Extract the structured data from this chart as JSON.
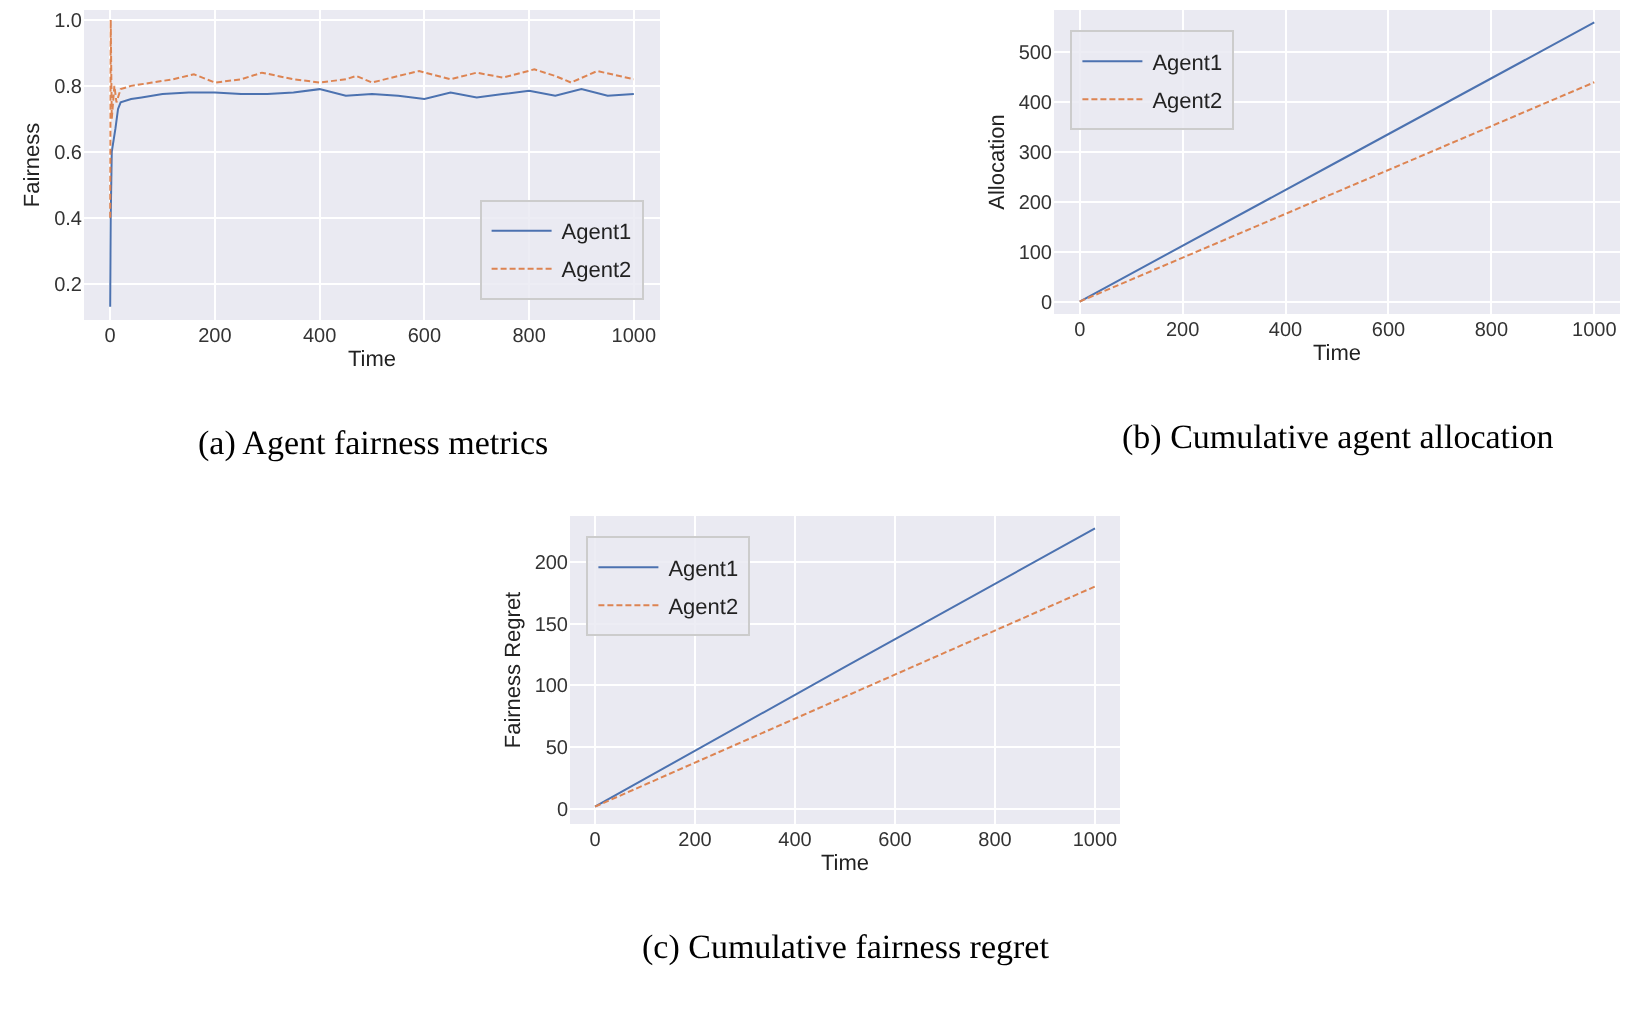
{
  "chart_data": [
    {
      "type": "line",
      "title": "(a) Agent fairness metrics",
      "xlabel": "Time",
      "ylabel": "Fairness",
      "xlim": [
        -50,
        1050
      ],
      "xticks": [
        0,
        200,
        400,
        600,
        800,
        1000
      ],
      "ylim": [
        0.09,
        1.03
      ],
      "yticks": [
        0.2,
        0.4,
        0.6,
        0.8,
        {
          "value": 1.0,
          "label": "1.0"
        }
      ],
      "grid": true,
      "legend": "bottom right",
      "series": [
        {
          "name": "Agent1",
          "color": "#4c72b0",
          "line_style": "solid",
          "x": [
            0,
            1,
            3,
            10,
            15,
            20,
            40,
            60,
            100,
            150,
            200,
            250,
            300,
            350,
            400,
            450,
            500,
            550,
            600,
            650,
            700,
            750,
            800,
            850,
            900,
            950,
            1000
          ],
          "values": [
            0.13,
            0.4,
            0.6,
            0.67,
            0.73,
            0.75,
            0.76,
            0.765,
            0.775,
            0.78,
            0.78,
            0.775,
            0.775,
            0.78,
            0.79,
            0.77,
            0.775,
            0.77,
            0.76,
            0.78,
            0.765,
            0.775,
            0.785,
            0.77,
            0.79,
            0.77,
            0.775
          ]
        },
        {
          "name": "Agent2",
          "color": "#dd8452",
          "line_style": "dashed",
          "x": [
            0,
            1,
            3,
            8,
            12,
            20,
            40,
            80,
            120,
            160,
            200,
            250,
            290,
            350,
            400,
            450,
            470,
            500,
            550,
            590,
            650,
            700,
            750,
            810,
            850,
            880,
            930,
            1000
          ],
          "values": [
            0.4,
            1.0,
            0.7,
            0.8,
            0.75,
            0.79,
            0.8,
            0.81,
            0.82,
            0.835,
            0.81,
            0.82,
            0.84,
            0.82,
            0.81,
            0.82,
            0.83,
            0.81,
            0.83,
            0.845,
            0.82,
            0.84,
            0.825,
            0.85,
            0.83,
            0.81,
            0.845,
            0.82
          ]
        }
      ]
    },
    {
      "type": "line",
      "title": "(b) Cumulative agent allocation",
      "xlabel": "Time",
      "ylabel": "Allocation",
      "xlim": [
        -50,
        1050
      ],
      "xticks": [
        0,
        200,
        400,
        600,
        800,
        1000
      ],
      "ylim": [
        -25,
        585
      ],
      "yticks": [
        0,
        100,
        200,
        300,
        400,
        500
      ],
      "grid": true,
      "legend": "top left",
      "series": [
        {
          "name": "Agent1",
          "color": "#4c72b0",
          "line_style": "solid",
          "x": [
            0,
            500,
            1000
          ],
          "values": [
            0,
            280,
            560
          ]
        },
        {
          "name": "Agent2",
          "color": "#dd8452",
          "line_style": "dashed",
          "x": [
            0,
            500,
            1000
          ],
          "values": [
            0,
            220,
            440
          ]
        }
      ]
    },
    {
      "type": "line",
      "title": "(c) Cumulative fairness regret",
      "xlabel": "Time",
      "ylabel": "Fairness Regret",
      "xlim": [
        -50,
        1050
      ],
      "xticks": [
        0,
        200,
        400,
        600,
        800,
        1000
      ],
      "ylim": [
        -12,
        237
      ],
      "yticks": [
        0,
        50,
        100,
        150,
        200
      ],
      "grid": true,
      "legend": "top left",
      "series": [
        {
          "name": "Agent1",
          "color": "#4c72b0",
          "line_style": "solid",
          "x": [
            0,
            500,
            1000
          ],
          "values": [
            2,
            115,
            227
          ]
        },
        {
          "name": "Agent2",
          "color": "#dd8452",
          "line_style": "dashed",
          "x": [
            0,
            500,
            1000
          ],
          "values": [
            2,
            91,
            180
          ]
        }
      ]
    }
  ]
}
